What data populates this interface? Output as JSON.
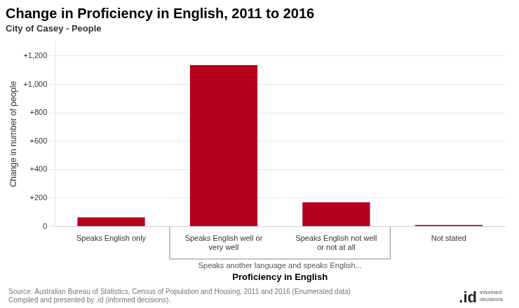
{
  "chart_data": {
    "type": "bar",
    "title": "Change in Proficiency in English, 2011 to 2016",
    "subtitle": "City of Casey - People",
    "categories": [
      "Speaks English only",
      "Speaks English well or\nvery well",
      "Speaks English not well\nor not at all",
      "Not stated"
    ],
    "values": [
      65,
      1135,
      170,
      10
    ],
    "color": "#b5001e",
    "ylabel": "Change in number of people",
    "xlabel": "Proficiency in English",
    "ylim": [
      0,
      1300
    ],
    "yticks": [
      0,
      {
        "value": 200,
        "label": "+200"
      },
      {
        "value": 400,
        "label": "+400"
      },
      {
        "value": 600,
        "label": "+600"
      },
      {
        "value": 800,
        "label": "+800"
      },
      {
        "value": 1000,
        "label": "+1,000"
      },
      {
        "value": 1200,
        "label": "+1,200"
      }
    ],
    "grid": true,
    "annotations": [
      {
        "text": "Speaks another language and speaks English...",
        "spans": [
          "Speaks English well or\nvery well",
          "Speaks English not well\nor not at all"
        ]
      }
    ],
    "source": [
      "Source: Australian Bureau of Statistics, Census of Population and Housing, 2011 and 2016 (Enumerated data)",
      "Compiled and presented by .id (informed decisions)."
    ],
    "logo": ".id",
    "logo_tagline": "informed\ndecisions"
  }
}
